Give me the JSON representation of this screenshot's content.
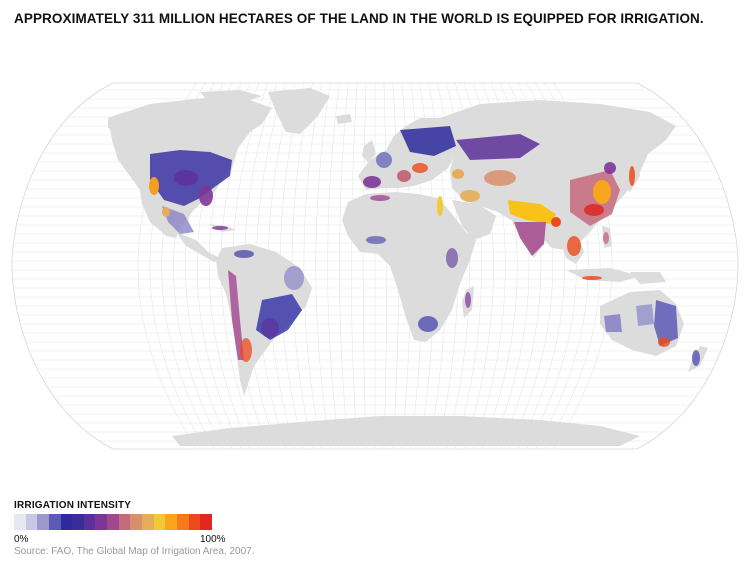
{
  "title": "APPROXIMATELY 311 MILLION HECTARES OF THE LAND IN THE WORLD IS EQUIPPED FOR IRRIGATION.",
  "legend": {
    "title": "IRRIGATION INTENSITY",
    "min_label": "0%",
    "max_label": "100%",
    "gradient_colors": [
      "#e8e8f0",
      "#c9c8e2",
      "#9a98cc",
      "#5d5ab6",
      "#2c2a9c",
      "#3b2d95",
      "#5d2f98",
      "#7e3597",
      "#a2468e",
      "#c56a7d",
      "#d98f6b",
      "#e6ac5a",
      "#f3c838",
      "#f9a51e",
      "#f47a1c",
      "#ec4a1d",
      "#e02720"
    ]
  },
  "source": "Source: FAO, The Global Map of Irrigation Area, 2007.",
  "map": {
    "projection": "Robinson",
    "land_color": "#dcdcdc",
    "ocean_color": "#ffffff",
    "graticule_color": "#e6e6e6"
  }
}
